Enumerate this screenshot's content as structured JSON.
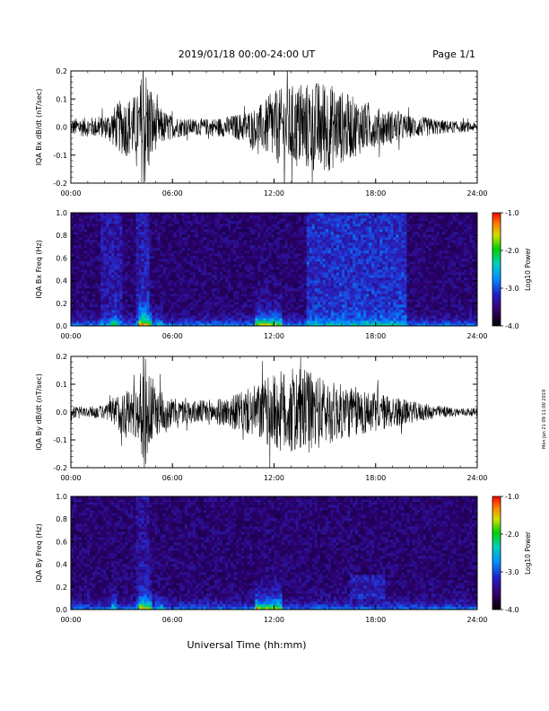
{
  "header": {
    "title": "2019/01/18  00:00-24:00 UT",
    "page": "Page 1/1"
  },
  "footer": {
    "xlabel": "Universal Time (hh:mm)",
    "side_note": "Mon Jan 21 09:11:00 2019"
  },
  "colorbar": {
    "label": "Log10 Power",
    "ticks": [
      "-1.0",
      "-2.0",
      "-3.0",
      "-4.0"
    ],
    "range": [
      -4.0,
      -1.0
    ]
  },
  "chart_data": [
    {
      "type": "line",
      "ylabel": "IQA Bx dB/dt (nT/sec)",
      "ylim": [
        -0.2,
        0.2
      ],
      "yticks": [
        "0.2",
        "0.1",
        "0.0",
        "-0.1",
        "-0.2"
      ],
      "xticks": [
        "00:00",
        "06:00",
        "12:00",
        "18:00",
        "24:00"
      ],
      "xlim_hours": [
        0,
        24
      ],
      "series": [
        {
          "x": [
            0,
            1,
            2,
            3,
            4,
            4.3,
            5,
            6,
            7,
            8,
            9,
            10,
            11,
            12,
            13,
            14,
            15,
            16,
            17,
            18,
            19,
            20,
            21,
            22,
            23,
            24
          ],
          "amplitude": [
            0.03,
            0.035,
            0.04,
            0.1,
            0.12,
            0.25,
            0.08,
            0.04,
            0.03,
            0.03,
            0.035,
            0.05,
            0.07,
            0.13,
            0.15,
            0.16,
            0.17,
            0.13,
            0.1,
            0.07,
            0.06,
            0.04,
            0.035,
            0.025,
            0.02,
            0.015
          ]
        }
      ]
    },
    {
      "type": "heatmap",
      "ylabel": "IQA Bx Freq (Hz)",
      "ylim": [
        0.0,
        1.0
      ],
      "yticks": [
        "1.0",
        "0.8",
        "0.6",
        "0.4",
        "0.2",
        "0.0"
      ],
      "xticks": [
        "00:00",
        "06:00",
        "12:00",
        "18:00",
        "24:00"
      ],
      "xlim_hours": [
        0,
        24
      ]
    },
    {
      "type": "line",
      "ylabel": "IQA By dB/dt (nT/sec)",
      "ylim": [
        -0.2,
        0.2
      ],
      "yticks": [
        "0.2",
        "0.1",
        "0.0",
        "-0.1",
        "-0.2"
      ],
      "xticks": [
        "00:00",
        "06:00",
        "12:00",
        "18:00",
        "24:00"
      ],
      "xlim_hours": [
        0,
        24
      ],
      "series": [
        {
          "x": [
            0,
            1,
            2,
            3,
            4,
            4.3,
            5,
            6,
            7,
            8,
            9,
            10,
            11,
            12,
            13,
            14,
            15,
            16,
            17,
            18,
            19,
            20,
            21,
            22,
            23,
            24
          ],
          "amplitude": [
            0.02,
            0.02,
            0.025,
            0.08,
            0.1,
            0.22,
            0.09,
            0.05,
            0.04,
            0.045,
            0.05,
            0.07,
            0.1,
            0.14,
            0.16,
            0.15,
            0.12,
            0.1,
            0.09,
            0.07,
            0.06,
            0.04,
            0.03,
            0.02,
            0.015,
            0.015
          ]
        }
      ]
    },
    {
      "type": "heatmap",
      "ylabel": "IQA By Freq (Hz)",
      "ylim": [
        0.0,
        1.0
      ],
      "yticks": [
        "1.0",
        "0.8",
        "0.6",
        "0.4",
        "0.2",
        "0.0"
      ],
      "xticks": [
        "00:00",
        "06:00",
        "12:00",
        "18:00",
        "24:00"
      ],
      "xlim_hours": [
        0,
        24
      ]
    }
  ]
}
